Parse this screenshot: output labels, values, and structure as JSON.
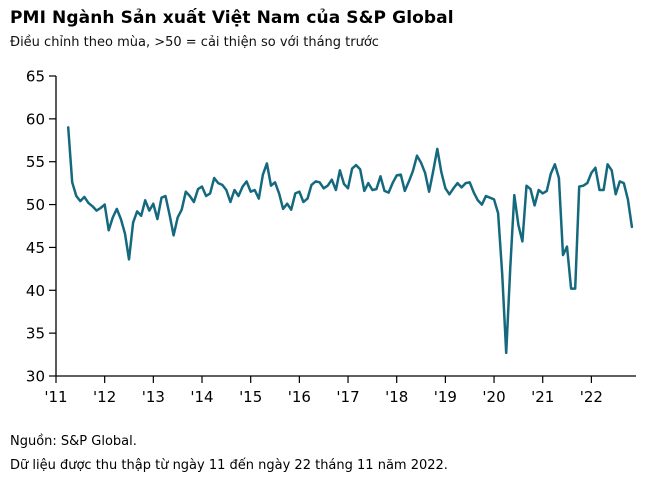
{
  "chart_data": {
    "type": "line",
    "title": "PMI Ngành Sản xuất Việt Nam của S&P Global",
    "subtitle": "Điều chỉnh theo mùa, >50 = cải thiện so với tháng trước",
    "ylim": [
      30,
      65
    ],
    "y_ticks": [
      30,
      35,
      40,
      45,
      50,
      55,
      60,
      65
    ],
    "x_tick_labels": [
      "'11",
      "'12",
      "'13",
      "'14",
      "'15",
      "'16",
      "'17",
      "'18",
      "'19",
      "'20",
      "'21",
      "'22"
    ],
    "x_range_months": [
      "2011-01",
      "2022-12"
    ],
    "grid": false,
    "legend": false,
    "line_color": "#15697e",
    "axis_color": "#000000",
    "series": [
      {
        "name": "PMI",
        "start": "2011-04",
        "frequency": "monthly",
        "values": [
          59.0,
          52.6,
          51.0,
          50.4,
          50.9,
          50.2,
          49.8,
          49.3,
          49.6,
          50.0,
          47.0,
          48.5,
          49.5,
          48.3,
          46.6,
          43.6,
          47.9,
          49.2,
          48.7,
          50.5,
          49.3,
          50.1,
          48.3,
          50.8,
          51.0,
          48.8,
          46.4,
          48.5,
          49.4,
          51.5,
          51.0,
          50.3,
          51.8,
          52.1,
          51.0,
          51.3,
          53.1,
          52.5,
          52.3,
          51.7,
          50.3,
          51.7,
          51.0,
          52.1,
          52.7,
          51.5,
          51.7,
          50.7,
          53.5,
          54.8,
          52.2,
          52.6,
          51.3,
          49.5,
          50.1,
          49.4,
          51.3,
          51.5,
          50.3,
          50.7,
          52.3,
          52.7,
          52.6,
          51.9,
          52.2,
          52.9,
          51.7,
          54.0,
          52.4,
          51.9,
          54.2,
          54.6,
          54.1,
          51.6,
          52.5,
          51.7,
          51.8,
          53.3,
          51.6,
          51.4,
          52.5,
          53.4,
          53.5,
          51.6,
          52.7,
          53.9,
          55.7,
          54.9,
          53.7,
          51.5,
          53.9,
          56.5,
          53.8,
          51.9,
          51.2,
          51.9,
          52.5,
          52.0,
          52.5,
          52.6,
          51.4,
          50.5,
          50.0,
          51.0,
          50.8,
          50.6,
          49.0,
          41.9,
          32.7,
          42.7,
          51.1,
          47.6,
          45.7,
          52.2,
          51.8,
          49.9,
          51.7,
          51.3,
          51.6,
          53.6,
          54.7,
          53.1,
          44.1,
          45.1,
          40.2,
          40.2,
          52.1,
          52.2,
          52.5,
          53.7,
          54.3,
          51.7,
          51.7,
          54.7,
          54.0,
          51.2,
          52.7,
          52.5,
          50.6,
          47.4
        ]
      }
    ]
  },
  "footer": {
    "source": "Nguồn: S&P Global.",
    "note": "Dữ liệu được thu thập từ ngày 11 đến ngày 22 tháng 11 năm 2022."
  }
}
